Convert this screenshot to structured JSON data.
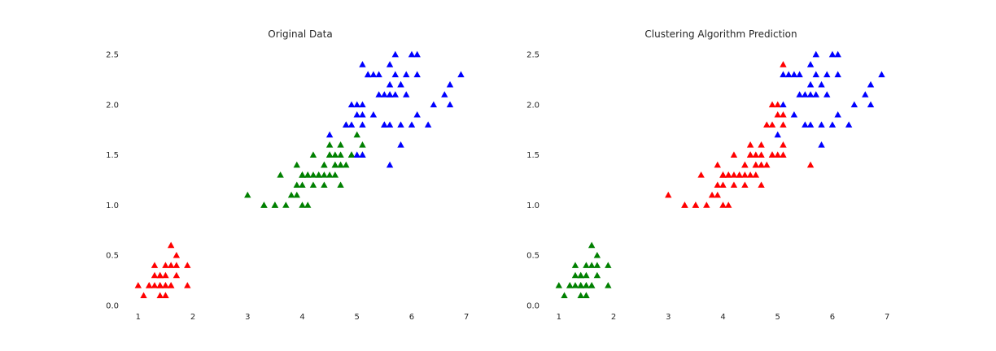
{
  "charts": {
    "0": {
      "title": "Original Data"
    },
    "1": {
      "title": "Clustering Algorithm Prediction"
    }
  },
  "colors": {
    "red": "#ff0000",
    "green": "#008000",
    "blue": "#0000ff",
    "text": "#262626"
  },
  "marker": "triangle-up",
  "chart_data": [
    {
      "type": "scatter",
      "title": "Original Data",
      "xlabel": "",
      "ylabel": "",
      "xlim": [
        0.75,
        7.25
      ],
      "ylim": [
        0.0,
        2.5
      ],
      "xticks": [
        1,
        2,
        3,
        4,
        5,
        6,
        7
      ],
      "yticks": [
        0.0,
        0.5,
        1.0,
        1.5,
        2.0,
        2.5
      ],
      "grid": false,
      "series": [
        {
          "color": "#ff0000",
          "points": [
            [
              1.4,
              0.2
            ],
            [
              1.3,
              0.2
            ],
            [
              1.5,
              0.2
            ],
            [
              1.4,
              0.2
            ],
            [
              1.7,
              0.4
            ],
            [
              1.4,
              0.3
            ],
            [
              1.5,
              0.2
            ],
            [
              1.5,
              0.1
            ],
            [
              1.6,
              0.2
            ],
            [
              1.4,
              0.1
            ],
            [
              1.1,
              0.1
            ],
            [
              1.2,
              0.2
            ],
            [
              1.3,
              0.4
            ],
            [
              1.7,
              0.3
            ],
            [
              1.5,
              0.3
            ],
            [
              1.0,
              0.2
            ],
            [
              1.9,
              0.2
            ],
            [
              1.6,
              0.4
            ],
            [
              1.6,
              0.2
            ],
            [
              1.2,
              0.2
            ],
            [
              1.3,
              0.3
            ],
            [
              1.6,
              0.6
            ],
            [
              1.9,
              0.4
            ],
            [
              1.4,
              0.3
            ],
            [
              1.5,
              0.4
            ],
            [
              1.7,
              0.5
            ],
            [
              1.5,
              0.1
            ],
            [
              1.4,
              0.2
            ]
          ]
        },
        {
          "color": "#008000",
          "points": [
            [
              4.7,
              1.4
            ],
            [
              4.5,
              1.5
            ],
            [
              4.9,
              1.5
            ],
            [
              4.0,
              1.3
            ],
            [
              4.6,
              1.5
            ],
            [
              4.5,
              1.3
            ],
            [
              4.7,
              1.6
            ],
            [
              3.3,
              1.0
            ],
            [
              4.6,
              1.3
            ],
            [
              3.9,
              1.4
            ],
            [
              3.5,
              1.0
            ],
            [
              4.2,
              1.5
            ],
            [
              4.0,
              1.0
            ],
            [
              4.7,
              1.4
            ],
            [
              3.6,
              1.3
            ],
            [
              4.4,
              1.4
            ],
            [
              4.1,
              1.0
            ],
            [
              4.5,
              1.5
            ],
            [
              3.9,
              1.1
            ],
            [
              4.8,
              1.8
            ],
            [
              4.0,
              1.3
            ],
            [
              4.9,
              1.5
            ],
            [
              4.7,
              1.2
            ],
            [
              4.3,
              1.3
            ],
            [
              4.4,
              1.4
            ],
            [
              4.8,
              1.4
            ],
            [
              5.0,
              1.7
            ],
            [
              4.5,
              1.5
            ],
            [
              3.5,
              1.0
            ],
            [
              3.8,
              1.1
            ],
            [
              3.7,
              1.0
            ],
            [
              3.9,
              1.2
            ],
            [
              5.1,
              1.6
            ],
            [
              4.5,
              1.6
            ],
            [
              4.7,
              1.5
            ],
            [
              4.4,
              1.3
            ],
            [
              4.1,
              1.3
            ],
            [
              4.0,
              1.3
            ],
            [
              4.4,
              1.2
            ],
            [
              4.6,
              1.4
            ],
            [
              4.0,
              1.2
            ],
            [
              3.3,
              1.0
            ],
            [
              4.2,
              1.3
            ],
            [
              4.2,
              1.2
            ],
            [
              4.3,
              1.3
            ],
            [
              3.0,
              1.1
            ],
            [
              4.1,
              1.3
            ],
            [
              5.1,
              1.5
            ],
            [
              4.9,
              1.5
            ],
            [
              4.6,
              1.4
            ]
          ]
        },
        {
          "color": "#0000ff",
          "points": [
            [
              6.0,
              2.5
            ],
            [
              5.1,
              1.9
            ],
            [
              5.9,
              2.1
            ],
            [
              5.6,
              1.8
            ],
            [
              5.8,
              2.2
            ],
            [
              6.6,
              2.1
            ],
            [
              4.5,
              1.7
            ],
            [
              6.3,
              1.8
            ],
            [
              5.8,
              1.8
            ],
            [
              6.1,
              2.5
            ],
            [
              5.1,
              2.0
            ],
            [
              5.3,
              1.9
            ],
            [
              5.5,
              2.1
            ],
            [
              5.0,
              2.0
            ],
            [
              5.1,
              2.4
            ],
            [
              5.3,
              2.3
            ],
            [
              5.5,
              1.8
            ],
            [
              6.7,
              2.2
            ],
            [
              6.9,
              2.3
            ],
            [
              5.0,
              1.5
            ],
            [
              5.7,
              2.3
            ],
            [
              4.9,
              2.0
            ],
            [
              6.7,
              2.0
            ],
            [
              4.9,
              1.8
            ],
            [
              5.7,
              2.1
            ],
            [
              6.0,
              1.8
            ],
            [
              4.8,
              1.8
            ],
            [
              5.6,
              2.1
            ],
            [
              5.8,
              1.6
            ],
            [
              6.1,
              1.9
            ],
            [
              6.4,
              2.0
            ],
            [
              5.6,
              2.2
            ],
            [
              5.1,
              1.5
            ],
            [
              5.6,
              1.4
            ],
            [
              6.1,
              2.3
            ],
            [
              5.6,
              2.4
            ],
            [
              5.5,
              1.8
            ],
            [
              5.4,
              2.1
            ],
            [
              5.2,
              2.3
            ],
            [
              5.7,
              2.5
            ],
            [
              5.2,
              2.3
            ],
            [
              5.0,
              1.9
            ],
            [
              5.4,
              2.3
            ],
            [
              5.1,
              1.8
            ],
            [
              5.9,
              2.3
            ],
            [
              5.6,
              2.1
            ],
            [
              5.8,
              2.2
            ]
          ]
        }
      ]
    },
    {
      "type": "scatter",
      "title": "Clustering Algorithm Prediction",
      "xlabel": "",
      "ylabel": "",
      "xlim": [
        0.75,
        7.25
      ],
      "ylim": [
        0.0,
        2.5
      ],
      "xticks": [
        1,
        2,
        3,
        4,
        5,
        6,
        7
      ],
      "yticks": [
        0.0,
        0.5,
        1.0,
        1.5,
        2.0,
        2.5
      ],
      "grid": false,
      "series": [
        {
          "color": "#008000",
          "points": [
            [
              1.4,
              0.2
            ],
            [
              1.3,
              0.2
            ],
            [
              1.5,
              0.2
            ],
            [
              1.4,
              0.2
            ],
            [
              1.7,
              0.4
            ],
            [
              1.4,
              0.3
            ],
            [
              1.5,
              0.2
            ],
            [
              1.5,
              0.1
            ],
            [
              1.6,
              0.2
            ],
            [
              1.4,
              0.1
            ],
            [
              1.1,
              0.1
            ],
            [
              1.2,
              0.2
            ],
            [
              1.3,
              0.4
            ],
            [
              1.7,
              0.3
            ],
            [
              1.5,
              0.3
            ],
            [
              1.0,
              0.2
            ],
            [
              1.9,
              0.2
            ],
            [
              1.6,
              0.4
            ],
            [
              1.6,
              0.2
            ],
            [
              1.2,
              0.2
            ],
            [
              1.3,
              0.3
            ],
            [
              1.6,
              0.6
            ],
            [
              1.9,
              0.4
            ],
            [
              1.4,
              0.3
            ],
            [
              1.5,
              0.4
            ],
            [
              1.7,
              0.5
            ],
            [
              1.5,
              0.1
            ],
            [
              1.4,
              0.2
            ]
          ]
        },
        {
          "color": "#ff0000",
          "points": [
            [
              4.7,
              1.4
            ],
            [
              4.5,
              1.5
            ],
            [
              4.9,
              1.5
            ],
            [
              4.0,
              1.3
            ],
            [
              4.6,
              1.5
            ],
            [
              4.5,
              1.3
            ],
            [
              4.7,
              1.6
            ],
            [
              3.3,
              1.0
            ],
            [
              4.6,
              1.3
            ],
            [
              3.9,
              1.4
            ],
            [
              3.5,
              1.0
            ],
            [
              4.2,
              1.5
            ],
            [
              4.0,
              1.0
            ],
            [
              4.7,
              1.4
            ],
            [
              3.6,
              1.3
            ],
            [
              4.4,
              1.4
            ],
            [
              4.1,
              1.0
            ],
            [
              4.5,
              1.5
            ],
            [
              3.9,
              1.1
            ],
            [
              4.8,
              1.8
            ],
            [
              4.0,
              1.3
            ],
            [
              4.9,
              1.5
            ],
            [
              4.7,
              1.2
            ],
            [
              4.3,
              1.3
            ],
            [
              4.4,
              1.4
            ],
            [
              4.8,
              1.4
            ],
            [
              4.5,
              1.5
            ],
            [
              3.5,
              1.0
            ],
            [
              3.8,
              1.1
            ],
            [
              3.7,
              1.0
            ],
            [
              3.9,
              1.2
            ],
            [
              5.1,
              1.6
            ],
            [
              4.5,
              1.6
            ],
            [
              4.7,
              1.5
            ],
            [
              4.4,
              1.3
            ],
            [
              4.1,
              1.3
            ],
            [
              4.0,
              1.3
            ],
            [
              4.4,
              1.2
            ],
            [
              4.6,
              1.4
            ],
            [
              4.0,
              1.2
            ],
            [
              3.3,
              1.0
            ],
            [
              4.2,
              1.3
            ],
            [
              4.2,
              1.2
            ],
            [
              4.3,
              1.3
            ],
            [
              3.0,
              1.1
            ],
            [
              4.1,
              1.3
            ],
            [
              5.1,
              1.5
            ],
            [
              4.9,
              1.5
            ],
            [
              4.6,
              1.4
            ],
            [
              5.1,
              2.4
            ],
            [
              5.6,
              1.4
            ],
            [
              4.9,
              1.8
            ],
            [
              5.0,
              2.0
            ],
            [
              5.1,
              1.9
            ],
            [
              5.0,
              1.9
            ],
            [
              4.9,
              2.0
            ],
            [
              5.0,
              1.5
            ],
            [
              5.1,
              1.8
            ]
          ]
        },
        {
          "color": "#0000ff",
          "points": [
            [
              6.0,
              2.5
            ],
            [
              5.9,
              2.1
            ],
            [
              5.6,
              1.8
            ],
            [
              5.8,
              2.2
            ],
            [
              6.6,
              2.1
            ],
            [
              6.3,
              1.8
            ],
            [
              5.8,
              1.8
            ],
            [
              6.1,
              2.5
            ],
            [
              5.1,
              2.0
            ],
            [
              5.3,
              1.9
            ],
            [
              5.5,
              2.1
            ],
            [
              5.3,
              2.3
            ],
            [
              5.5,
              1.8
            ],
            [
              6.7,
              2.2
            ],
            [
              6.9,
              2.3
            ],
            [
              5.0,
              1.7
            ],
            [
              5.7,
              2.3
            ],
            [
              6.7,
              2.0
            ],
            [
              5.7,
              2.1
            ],
            [
              6.0,
              1.8
            ],
            [
              5.6,
              2.1
            ],
            [
              5.8,
              1.6
            ],
            [
              6.1,
              1.9
            ],
            [
              6.4,
              2.0
            ],
            [
              5.6,
              2.2
            ],
            [
              6.1,
              2.3
            ],
            [
              5.6,
              2.4
            ],
            [
              5.4,
              2.1
            ],
            [
              5.2,
              2.3
            ],
            [
              5.7,
              2.5
            ],
            [
              5.4,
              2.3
            ],
            [
              5.9,
              2.3
            ],
            [
              5.1,
              2.3
            ]
          ]
        }
      ]
    }
  ]
}
